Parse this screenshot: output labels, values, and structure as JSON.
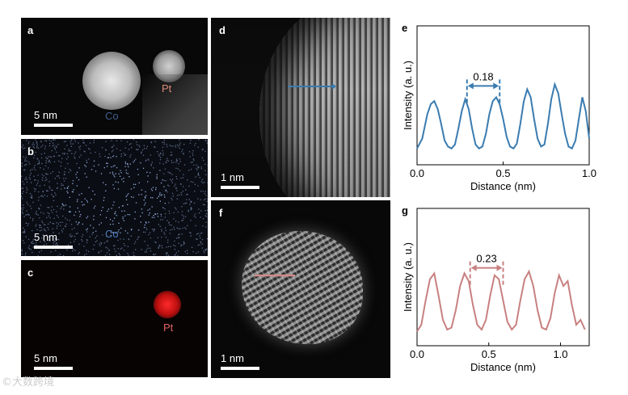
{
  "figure": {
    "panels": {
      "a": {
        "label": "a",
        "scale_text": "5 nm",
        "elements": [
          {
            "name": "Co",
            "color": "#3f5f8f"
          },
          {
            "name": "Pt",
            "color": "#d98b7a"
          }
        ]
      },
      "b": {
        "label": "b",
        "scale_text": "5 nm",
        "element": "Co",
        "element_color": "#4a78b8"
      },
      "c": {
        "label": "c",
        "scale_text": "5 nm",
        "element": "Pt",
        "element_color": "#e06060"
      },
      "d": {
        "label": "d",
        "scale_text": "1 nm",
        "line_color": "#3a7bb0"
      },
      "f": {
        "label": "f",
        "scale_text": "1 nm",
        "line_color": "#d08a8a"
      },
      "e": {
        "label": "e"
      },
      "g": {
        "label": "g"
      }
    },
    "watermark": "©大数跨境"
  },
  "chart_data": [
    {
      "id": "e",
      "type": "line",
      "xlabel": "Distance (nm)",
      "ylabel": "Intensity (a. u.)",
      "xlim": [
        0.0,
        1.0
      ],
      "ylim": [
        0,
        1
      ],
      "xticks": [
        "0.0",
        "0.5",
        "1.0"
      ],
      "xtick_values": [
        0.0,
        0.5,
        1.0
      ],
      "color": "#3a7bb0",
      "annotation": {
        "text": "0.18",
        "x1": 0.29,
        "x2": 0.48
      },
      "x": [
        0.0,
        0.03,
        0.06,
        0.08,
        0.1,
        0.12,
        0.14,
        0.16,
        0.18,
        0.2,
        0.22,
        0.24,
        0.26,
        0.28,
        0.3,
        0.32,
        0.34,
        0.36,
        0.38,
        0.4,
        0.42,
        0.44,
        0.46,
        0.48,
        0.5,
        0.52,
        0.54,
        0.56,
        0.58,
        0.6,
        0.62,
        0.64,
        0.66,
        0.68,
        0.7,
        0.72,
        0.74,
        0.76,
        0.78,
        0.8,
        0.82,
        0.84,
        0.86,
        0.88,
        0.9,
        0.92,
        0.94,
        0.96,
        0.98,
        1.0
      ],
      "y": [
        0.1,
        0.2,
        0.45,
        0.55,
        0.58,
        0.5,
        0.35,
        0.18,
        0.12,
        0.1,
        0.14,
        0.3,
        0.48,
        0.6,
        0.5,
        0.3,
        0.14,
        0.1,
        0.12,
        0.25,
        0.45,
        0.58,
        0.62,
        0.55,
        0.4,
        0.22,
        0.12,
        0.1,
        0.15,
        0.35,
        0.58,
        0.7,
        0.62,
        0.4,
        0.2,
        0.12,
        0.14,
        0.35,
        0.6,
        0.75,
        0.66,
        0.45,
        0.25,
        0.12,
        0.1,
        0.18,
        0.4,
        0.62,
        0.48,
        0.2
      ]
    },
    {
      "id": "g",
      "type": "line",
      "xlabel": "Distance (nm)",
      "ylabel": "Intensity (a. u.)",
      "xlim": [
        0.0,
        1.2
      ],
      "ylim": [
        0,
        1
      ],
      "xticks": [
        "0.0",
        "0.5",
        "1.0"
      ],
      "xtick_values": [
        0.0,
        0.5,
        1.0
      ],
      "color": "#c88080",
      "annotation": {
        "text": "0.23",
        "x1": 0.37,
        "x2": 0.6
      },
      "x": [
        0.0,
        0.03,
        0.06,
        0.09,
        0.12,
        0.15,
        0.18,
        0.21,
        0.24,
        0.27,
        0.3,
        0.33,
        0.36,
        0.39,
        0.42,
        0.45,
        0.48,
        0.51,
        0.54,
        0.57,
        0.6,
        0.63,
        0.66,
        0.69,
        0.72,
        0.75,
        0.78,
        0.81,
        0.84,
        0.87,
        0.9,
        0.93,
        0.96,
        0.99,
        1.02,
        1.05,
        1.08,
        1.11,
        1.14,
        1.17
      ],
      "y": [
        0.08,
        0.15,
        0.4,
        0.62,
        0.68,
        0.45,
        0.2,
        0.1,
        0.12,
        0.3,
        0.55,
        0.68,
        0.6,
        0.35,
        0.15,
        0.1,
        0.2,
        0.45,
        0.66,
        0.62,
        0.4,
        0.18,
        0.1,
        0.15,
        0.4,
        0.62,
        0.7,
        0.55,
        0.3,
        0.12,
        0.1,
        0.22,
        0.48,
        0.66,
        0.55,
        0.6,
        0.35,
        0.15,
        0.2,
        0.1
      ]
    }
  ]
}
